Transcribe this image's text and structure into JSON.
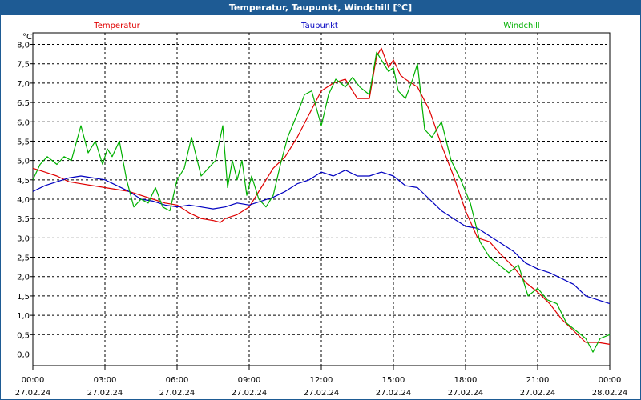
{
  "window": {
    "title": "Temperatur, Taupunkt, Windchill [°C]"
  },
  "chart_data": {
    "type": "line",
    "title": "Temperatur, Taupunkt, Windchill [°C]",
    "ylabel": "°C",
    "xlabel": "",
    "ylim": [
      -0.3,
      8.3
    ],
    "xlim": [
      0,
      24
    ],
    "grid": true,
    "legend": "top",
    "y_ticks": [
      "8,0",
      "7,5",
      "7,0",
      "6,5",
      "6,0",
      "5,5",
      "5,0",
      "4,5",
      "4,0",
      "3,5",
      "3,0",
      "2,5",
      "2,0",
      "1,5",
      "1,0",
      "0,5",
      "0,0"
    ],
    "x_ticks": [
      {
        "time": "00:00",
        "date": "27.02.24"
      },
      {
        "time": "03:00",
        "date": "27.02.24"
      },
      {
        "time": "06:00",
        "date": "27.02.24"
      },
      {
        "time": "09:00",
        "date": "27.02.24"
      },
      {
        "time": "12:00",
        "date": "27.02.24"
      },
      {
        "time": "15:00",
        "date": "27.02.24"
      },
      {
        "time": "18:00",
        "date": "27.02.24"
      },
      {
        "time": "21:00",
        "date": "27.02.24"
      },
      {
        "time": "00:00",
        "date": "28.02.24"
      }
    ],
    "series": [
      {
        "name": "Temperatur",
        "color": "#e00000",
        "x": [
          0,
          0.5,
          1,
          1.5,
          2,
          2.5,
          3,
          3.5,
          4,
          4.5,
          5,
          5.5,
          6,
          6.5,
          7,
          7.5,
          7.8,
          8,
          8.5,
          9,
          9.5,
          10,
          10.5,
          11,
          11.5,
          12,
          12.5,
          13,
          13.5,
          14,
          14.3,
          14.5,
          14.8,
          15,
          15.3,
          15.5,
          16,
          16.5,
          17,
          17.5,
          18,
          18.5,
          19,
          19.5,
          20,
          20.5,
          21,
          21.5,
          22,
          22.5,
          23,
          23.5,
          24
        ],
        "y": [
          4.8,
          4.7,
          4.6,
          4.45,
          4.4,
          4.35,
          4.3,
          4.25,
          4.2,
          4.1,
          4.0,
          3.9,
          3.85,
          3.65,
          3.5,
          3.45,
          3.4,
          3.5,
          3.6,
          3.8,
          4.3,
          4.8,
          5.1,
          5.6,
          6.2,
          6.8,
          7.0,
          7.1,
          6.6,
          6.6,
          7.7,
          7.9,
          7.4,
          7.6,
          7.2,
          7.1,
          6.9,
          6.3,
          5.4,
          4.6,
          3.7,
          3.0,
          2.9,
          2.55,
          2.25,
          1.85,
          1.6,
          1.3,
          0.9,
          0.6,
          0.3,
          0.3,
          0.25
        ]
      },
      {
        "name": "Taupunkt",
        "color": "#0000c0",
        "x": [
          0,
          0.5,
          1,
          1.5,
          2,
          2.5,
          3,
          3.5,
          4,
          4.5,
          5,
          5.5,
          6,
          6.5,
          7,
          7.5,
          8,
          8.5,
          9,
          9.5,
          10,
          10.5,
          11,
          11.5,
          12,
          12.5,
          13,
          13.5,
          14,
          14.5,
          15,
          15.5,
          16,
          16.5,
          17,
          17.5,
          18,
          18.5,
          19,
          19.5,
          20,
          20.5,
          21,
          21.5,
          22,
          22.5,
          23,
          23.5,
          24
        ],
        "y": [
          4.2,
          4.35,
          4.45,
          4.55,
          4.6,
          4.55,
          4.5,
          4.35,
          4.2,
          4.0,
          3.95,
          3.85,
          3.8,
          3.85,
          3.8,
          3.75,
          3.8,
          3.9,
          3.85,
          3.95,
          4.05,
          4.2,
          4.4,
          4.5,
          4.7,
          4.6,
          4.75,
          4.6,
          4.6,
          4.7,
          4.6,
          4.35,
          4.3,
          4.0,
          3.7,
          3.5,
          3.3,
          3.25,
          3.05,
          2.85,
          2.65,
          2.35,
          2.2,
          2.1,
          1.95,
          1.8,
          1.5,
          1.4,
          1.3
        ]
      },
      {
        "name": "Windchill",
        "color": "#00b000",
        "x": [
          0,
          0.3,
          0.6,
          1,
          1.3,
          1.6,
          2,
          2.3,
          2.6,
          2.9,
          3.1,
          3.3,
          3.6,
          3.9,
          4.2,
          4.5,
          4.8,
          5.1,
          5.4,
          5.7,
          6,
          6.3,
          6.6,
          7,
          7.3,
          7.6,
          7.9,
          8.1,
          8.3,
          8.5,
          8.7,
          8.9,
          9.1,
          9.4,
          9.7,
          10,
          10.3,
          10.6,
          11,
          11.3,
          11.6,
          12,
          12.3,
          12.6,
          13,
          13.3,
          13.6,
          14,
          14.3,
          14.5,
          14.8,
          15,
          15.2,
          15.5,
          15.8,
          16,
          16.3,
          16.6,
          17,
          17.4,
          17.8,
          18.2,
          18.6,
          19,
          19.4,
          19.8,
          20.2,
          20.6,
          21,
          21.4,
          21.8,
          22.2,
          22.6,
          23,
          23.3,
          23.6,
          24
        ],
        "y": [
          4.5,
          4.9,
          5.1,
          4.9,
          5.1,
          5.0,
          5.9,
          5.2,
          5.5,
          4.9,
          5.3,
          5.1,
          5.5,
          4.5,
          3.8,
          4.0,
          3.9,
          4.3,
          3.8,
          3.7,
          4.5,
          4.8,
          5.6,
          4.6,
          4.8,
          5.0,
          5.9,
          4.3,
          5.0,
          4.5,
          5.0,
          4.1,
          4.6,
          4.0,
          3.8,
          4.1,
          4.9,
          5.6,
          6.2,
          6.7,
          6.8,
          5.9,
          6.7,
          7.1,
          6.9,
          7.15,
          6.9,
          6.7,
          7.8,
          7.6,
          7.3,
          7.4,
          6.8,
          6.6,
          7.1,
          7.5,
          5.8,
          5.6,
          6.0,
          5.0,
          4.5,
          3.9,
          2.9,
          2.5,
          2.3,
          2.1,
          2.3,
          1.5,
          1.7,
          1.4,
          1.3,
          0.8,
          0.6,
          0.4,
          0.05,
          0.4,
          0.5
        ]
      }
    ]
  }
}
